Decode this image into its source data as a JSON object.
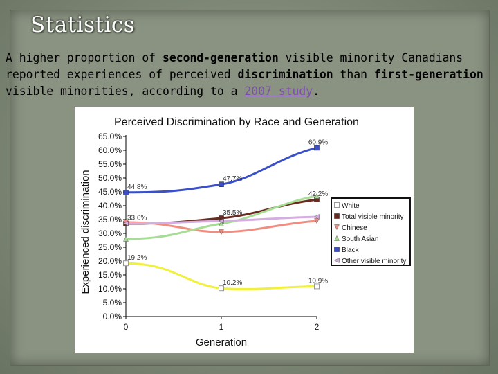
{
  "slide": {
    "title": "Statistics",
    "text_parts": {
      "p1": "A higher proportion of ",
      "b1": "second-generation",
      "p2": " visible minority Canadians reported experiences of perceived ",
      "b2": "discrimination",
      "p3": " than ",
      "b3": "first-generation",
      "p4": " visible minorities, according to a ",
      "link": "2007 study",
      "p5": "."
    }
  },
  "chart_data": {
    "type": "line",
    "title": "Perceived Discrimination by Race and Generation",
    "xlabel": "Generation",
    "ylabel": "Experienced discrimination",
    "x": [
      0,
      1,
      2
    ],
    "xlim": [
      0,
      2
    ],
    "ylim": [
      0,
      65
    ],
    "ytick_step": 5,
    "ytick_labels": [
      "0.0%",
      "5.0%",
      "10.0%",
      "15.0%",
      "20.0%",
      "25.0%",
      "30.0%",
      "35.0%",
      "40.0%",
      "45.0%",
      "50.0%",
      "55.0%",
      "60.0%",
      "65.0%"
    ],
    "xtick_labels": [
      "0",
      "1",
      "2"
    ],
    "legend_position": "right",
    "series": [
      {
        "name": "White",
        "values": [
          19.2,
          10.2,
          10.9
        ],
        "color": "#f1f03a",
        "marker": "square-open",
        "labels": [
          "19.2%",
          "10.2%",
          "10.9%"
        ]
      },
      {
        "name": "Total visible minority",
        "values": [
          33.5,
          35.5,
          42.2
        ],
        "color": "#6b2a1f",
        "marker": "square",
        "labels": [
          "",
          "35.5%",
          "42.2%"
        ]
      },
      {
        "name": "Chinese",
        "values": [
          34.0,
          30.5,
          34.5
        ],
        "color": "#f08c80",
        "marker": "triangle-down",
        "labels": [
          "",
          "",
          ""
        ]
      },
      {
        "name": "South Asian",
        "values": [
          28.0,
          33.5,
          43.5
        ],
        "color": "#a6dd94",
        "marker": "triangle-up",
        "labels": [
          "",
          "",
          ""
        ]
      },
      {
        "name": "Black",
        "values": [
          44.8,
          47.7,
          60.9
        ],
        "color": "#3a4fc8",
        "marker": "square",
        "labels": [
          "44.8%",
          "47.7%",
          "60.9%"
        ]
      },
      {
        "name": "Other visible minority",
        "values": [
          33.6,
          34.5,
          36.0
        ],
        "color": "#d4aee0",
        "marker": "triangle-left",
        "labels": [
          "33.6%",
          "",
          ""
        ]
      }
    ]
  }
}
